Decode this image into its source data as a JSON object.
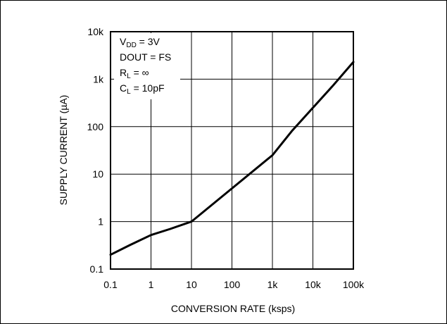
{
  "chart_data": {
    "type": "line",
    "title": "",
    "xlabel": "CONVERSION RATE (ksps)",
    "ylabel": "SUPPLY CURRENT (µA)",
    "x_scale": "log",
    "y_scale": "log",
    "xlim": [
      0.1,
      100000
    ],
    "ylim": [
      0.1,
      10000
    ],
    "grid": true,
    "x_ticks": [
      0.1,
      1,
      10,
      100,
      1000,
      10000,
      100000
    ],
    "x_tick_labels": [
      "0.1",
      "1",
      "10",
      "100",
      "1k",
      "10k",
      "100k"
    ],
    "y_ticks": [
      0.1,
      1,
      10,
      100,
      1000,
      10000
    ],
    "y_tick_labels": [
      "0.1",
      "1",
      "10",
      "100",
      "1k",
      "10k"
    ],
    "annotations": {
      "vdd": {
        "main": "V",
        "sub": "DD",
        "rest": " = 3V"
      },
      "dout": "DOUT = FS",
      "rl": {
        "main": "R",
        "sub": "L",
        "rest": " = ∞"
      },
      "cl": {
        "main": "C",
        "sub": "L",
        "rest": " = 10pF"
      }
    },
    "series": [
      {
        "x": [
          0.1,
          0.3,
          1,
          3,
          10,
          100,
          1000,
          3000,
          10000,
          30000,
          100000
        ],
        "y": [
          0.2,
          0.32,
          0.52,
          0.7,
          1.0,
          5.0,
          25,
          80,
          250,
          700,
          2300
        ]
      }
    ]
  }
}
